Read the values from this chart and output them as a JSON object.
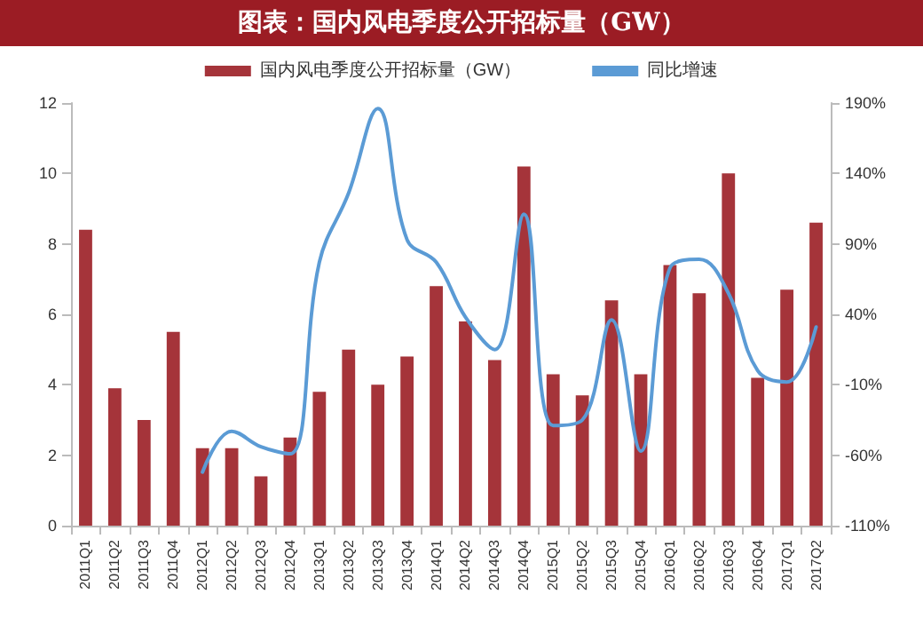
{
  "chart_data": {
    "type": "bar",
    "title": "图表：国内风电季度公开招标量（GW）",
    "categories": [
      "2011Q1",
      "2011Q2",
      "2011Q3",
      "2011Q4",
      "2012Q1",
      "2012Q2",
      "2012Q3",
      "2012Q4",
      "2013Q1",
      "2013Q2",
      "2013Q3",
      "2013Q4",
      "2014Q1",
      "2014Q2",
      "2014Q3",
      "2014Q4",
      "2015Q1",
      "2015Q2",
      "2015Q3",
      "2015Q4",
      "2016Q1",
      "2016Q2",
      "2016Q3",
      "2016Q4",
      "2017Q1",
      "2017Q2"
    ],
    "series": [
      {
        "name": "国内风电季度公开招标量（GW）",
        "color": "#a5343a",
        "values": [
          8.4,
          3.9,
          3.0,
          5.5,
          2.2,
          2.2,
          1.4,
          2.5,
          3.8,
          5.0,
          4.0,
          4.8,
          6.8,
          5.8,
          4.7,
          10.2,
          4.3,
          3.7,
          6.4,
          4.3,
          7.4,
          6.6,
          10.0,
          4.2,
          6.7,
          8.6
        ]
      },
      {
        "name": "同比增速",
        "type": "line",
        "axis": "y2",
        "color": "#5b9bd5",
        "values": [
          null,
          null,
          null,
          null,
          -72,
          -43,
          -54,
          -59,
          77,
          126,
          186,
          93,
          77,
          38,
          15,
          111,
          -39,
          -35,
          36,
          -57,
          73,
          79,
          55,
          0,
          -8,
          31
        ]
      }
    ],
    "ylim": [
      0,
      12
    ],
    "yticks": [
      0,
      2,
      4,
      6,
      8,
      10,
      12
    ],
    "y2lim": [
      -110,
      190
    ],
    "y2ticks": [
      {
        "value": -110,
        "label": "-110%"
      },
      {
        "value": -60,
        "label": "-60%"
      },
      {
        "value": -10,
        "label": "-10%"
      },
      {
        "value": 40,
        "label": "40%"
      },
      {
        "value": 90,
        "label": "90%"
      },
      {
        "value": 140,
        "label": "140%"
      },
      {
        "value": 190,
        "label": "190%"
      }
    ],
    "legend": "top",
    "grid": false,
    "marker": "none",
    "line_style": "solid"
  }
}
